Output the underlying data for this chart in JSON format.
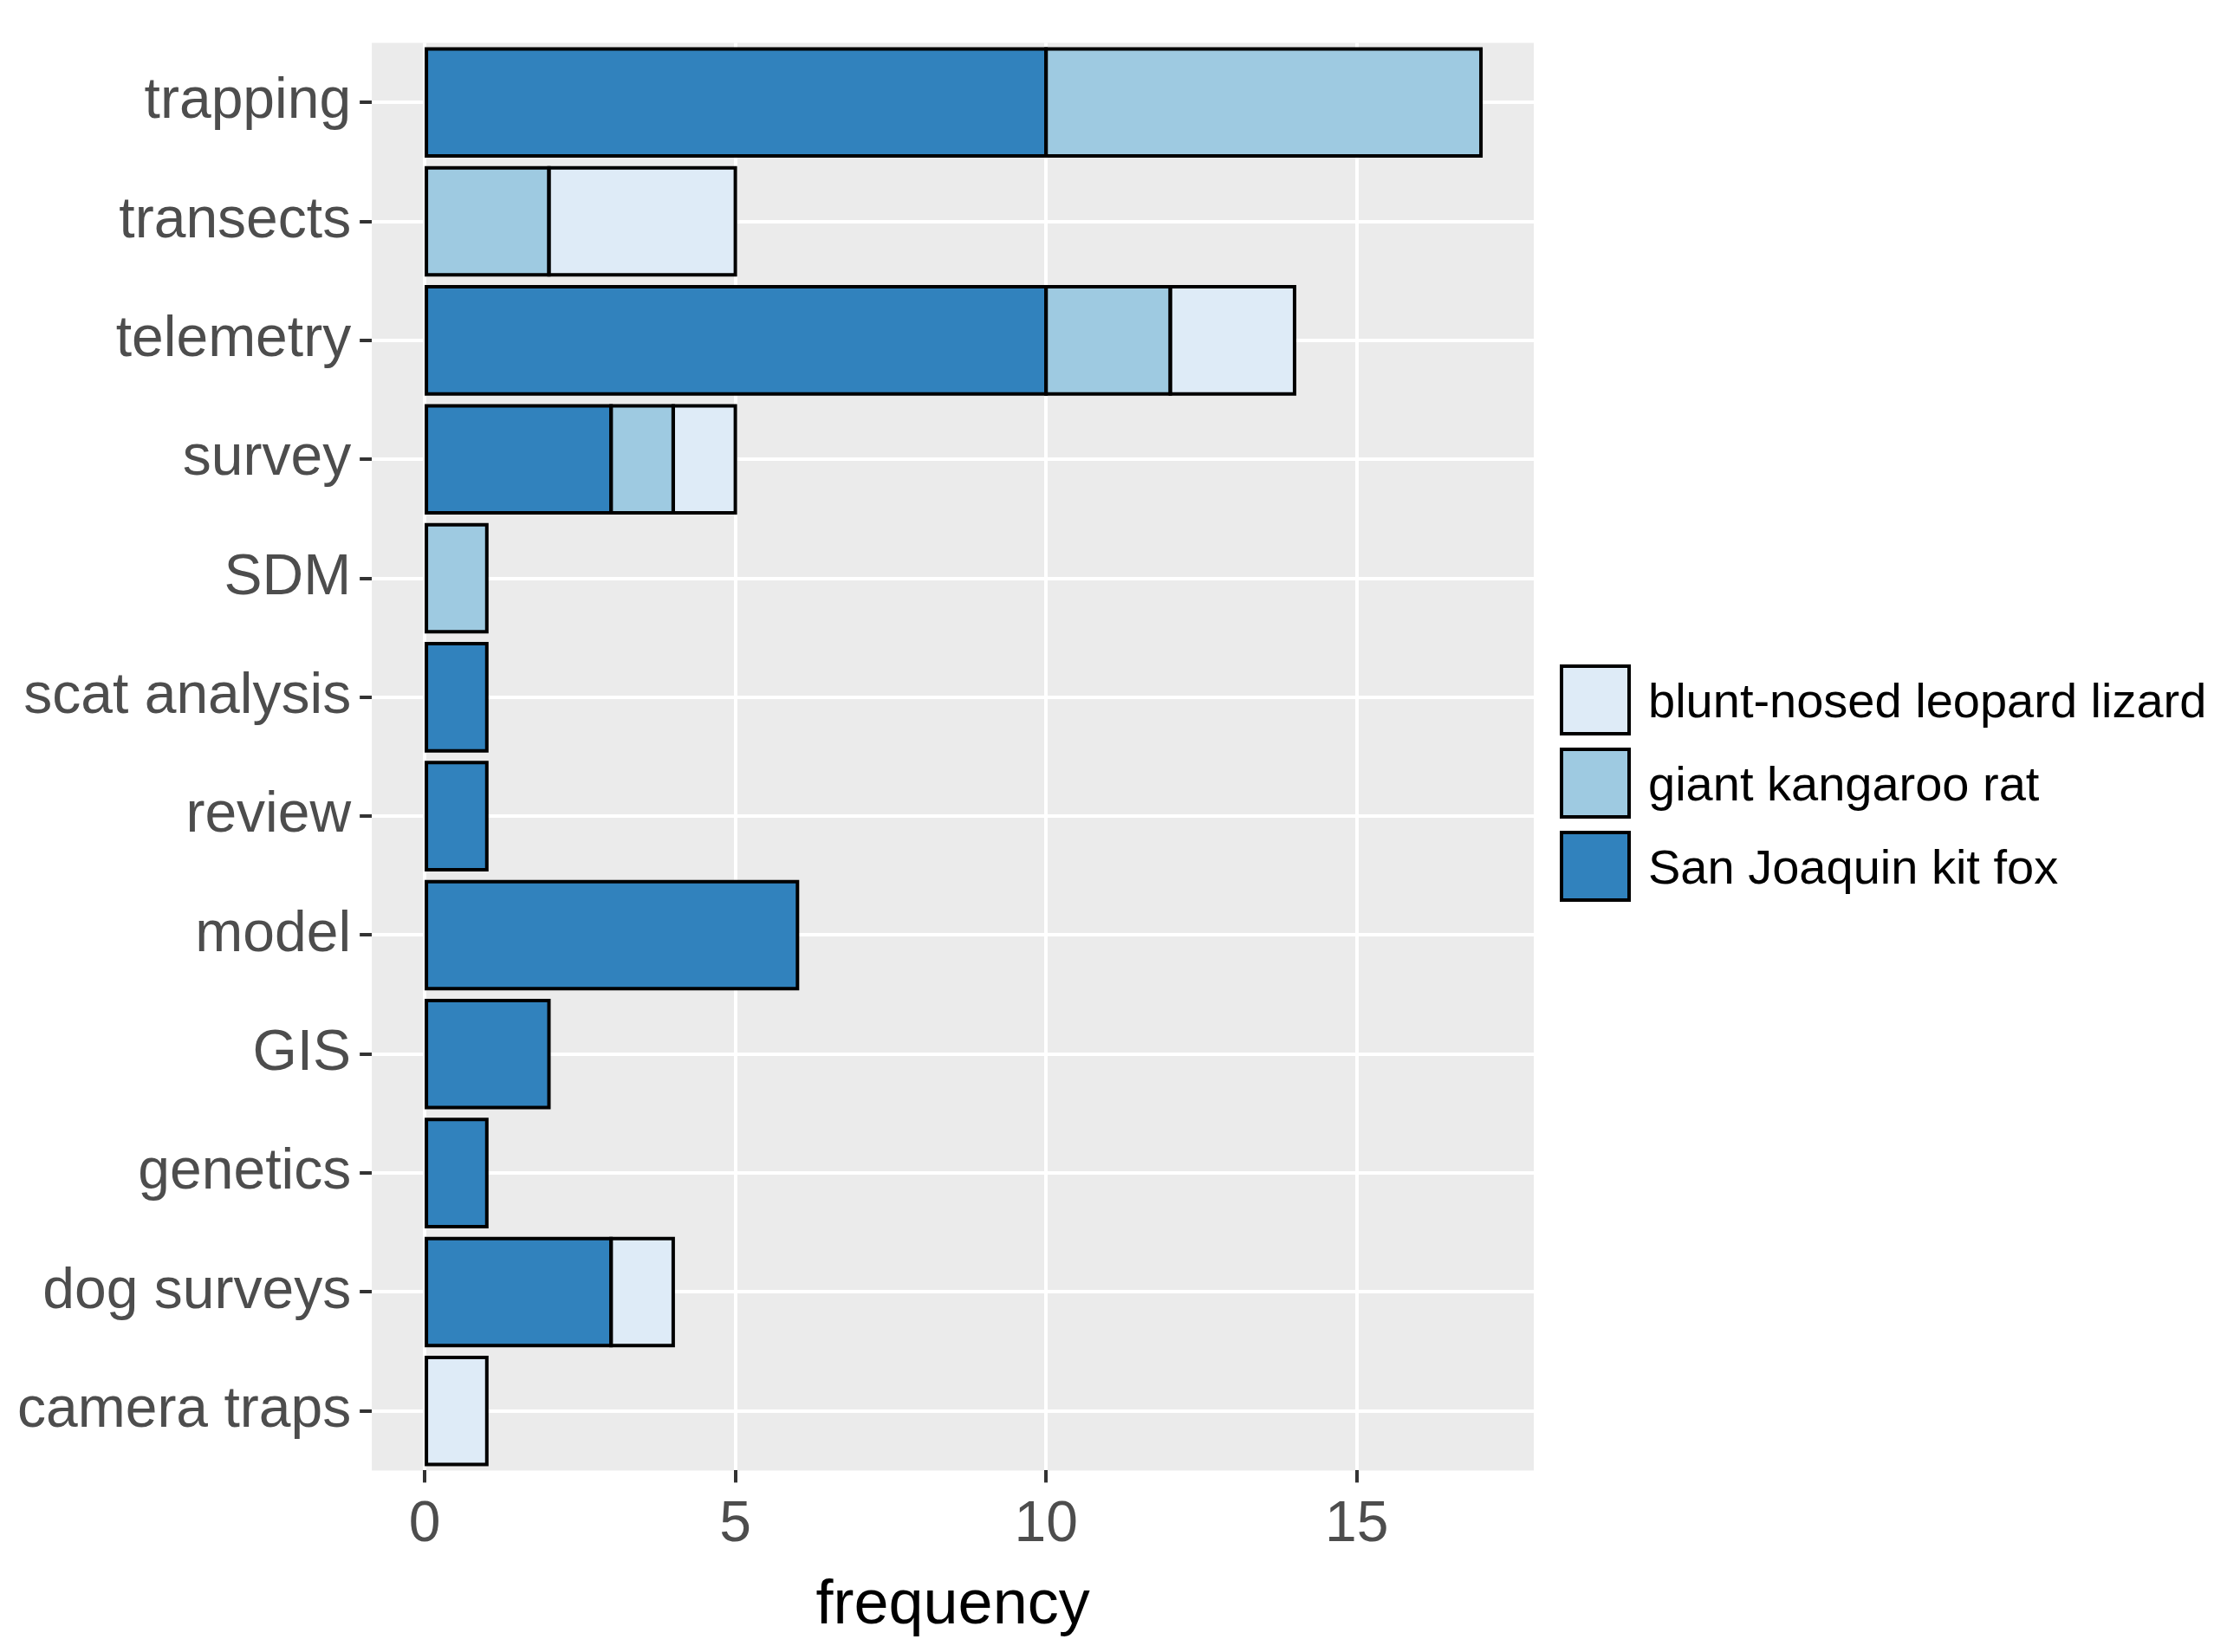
{
  "chart_data": {
    "type": "bar",
    "orientation": "horizontal",
    "stacked": true,
    "xlabel": "frequency",
    "categories": [
      "trapping",
      "transects",
      "telemetry",
      "survey",
      "SDM",
      "scat analysis",
      "review",
      "model",
      "GIS",
      "genetics",
      "dog surveys",
      "camera traps"
    ],
    "series": [
      {
        "name": "San Joaquin kit fox",
        "color": "#3182bd",
        "values": [
          10,
          0,
          10,
          3,
          0,
          1,
          1,
          6,
          2,
          1,
          3,
          0
        ]
      },
      {
        "name": "giant kangaroo rat",
        "color": "#9ecae1",
        "values": [
          7,
          2,
          2,
          1,
          1,
          0,
          0,
          0,
          0,
          0,
          0,
          0
        ]
      },
      {
        "name": "blunt-nosed leopard lizard",
        "color": "#deebf7",
        "values": [
          0,
          3,
          2,
          1,
          0,
          0,
          0,
          0,
          0,
          0,
          1,
          1
        ]
      }
    ],
    "xlim": [
      -0.85,
      17.85
    ],
    "xticks": [
      0,
      5,
      10,
      15
    ],
    "grid": true,
    "legend": "right"
  }
}
